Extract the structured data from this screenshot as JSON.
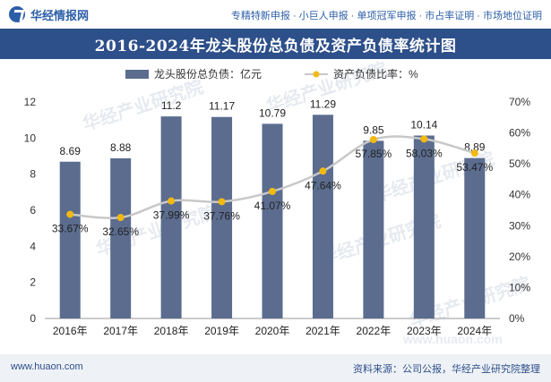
{
  "header": {
    "logo_text": "华经情报网",
    "tagline": "专精特新申报 · 小巨人申报 · 单项冠军申报 · 市占率证明 · 市场地位证明"
  },
  "title": "2016-2024年龙头股份总负债及资产负债率统计图",
  "footer": {
    "website": "www.huaon.com",
    "source": "资料来源：公司公报，华经产业研究院整理"
  },
  "watermark": {
    "text": "华经产业研究院",
    "url": "www.huaon.com"
  },
  "colors": {
    "bar": "#5b6c8f",
    "line": "#c8c8c8",
    "marker": "#f2b90f",
    "title_bg": "#2d4f8a"
  },
  "chart_data": {
    "type": "bar",
    "categories": [
      "2016年",
      "2017年",
      "2018年",
      "2019年",
      "2020年",
      "2021年",
      "2022年",
      "2023年",
      "2024年"
    ],
    "series": [
      {
        "name": "龙头股份总负债：亿元",
        "type": "bar",
        "axis": "left",
        "values": [
          8.69,
          8.88,
          11.2,
          11.17,
          10.79,
          11.29,
          9.85,
          10.14,
          8.89
        ],
        "labels": [
          "8.69",
          "8.88",
          "11.2",
          "11.17",
          "10.79",
          "11.29",
          "9.85",
          "10.14",
          "8.89"
        ]
      },
      {
        "name": "资产负债比率：%",
        "type": "line",
        "axis": "right",
        "values": [
          33.67,
          32.65,
          37.99,
          37.76,
          41.07,
          47.64,
          57.85,
          58.03,
          53.47
        ],
        "labels": [
          "33.67%",
          "32.65%",
          "37.99%",
          "37.76%",
          "41.07%",
          "47.64%",
          "57.85%",
          "58.03%",
          "53.47%"
        ]
      }
    ],
    "y_left": {
      "min": 0,
      "max": 12,
      "ticks": [
        "0",
        "2",
        "4",
        "6",
        "8",
        "10",
        "12"
      ]
    },
    "y_right": {
      "min": 0,
      "max": 70,
      "ticks": [
        "0%",
        "10%",
        "20%",
        "30%",
        "40%",
        "50%",
        "60%",
        "70%"
      ]
    },
    "legend_position": "top-center",
    "grid": false
  }
}
